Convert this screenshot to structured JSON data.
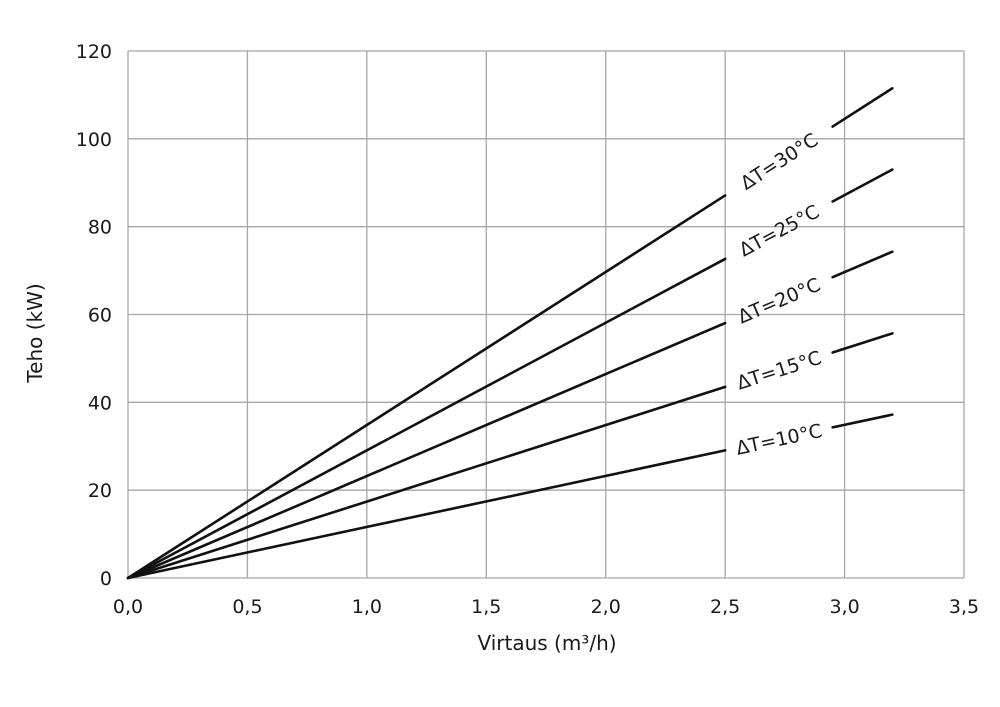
{
  "chart_data": {
    "type": "line",
    "title": "",
    "xlabel": "Virtaus (m³/h)",
    "ylabel": "Teho (kW)",
    "xlim": [
      0,
      3.5
    ],
    "ylim": [
      0,
      120
    ],
    "x_ticks": [
      0,
      0.5,
      1.0,
      1.5,
      2.0,
      2.5,
      3.0,
      3.5
    ],
    "x_tick_labels": [
      "0,0",
      "0,5",
      "1,0",
      "1,5",
      "2,0",
      "2,5",
      "3,0",
      "3,5"
    ],
    "y_ticks": [
      0,
      20,
      40,
      60,
      80,
      100,
      120
    ],
    "y_tick_labels": [
      "0",
      "20",
      "40",
      "60",
      "80",
      "100",
      "120"
    ],
    "grid": true,
    "legend": "inline labels on lines",
    "series_color": "#111111",
    "grid_color": "#a6a6a6",
    "series": [
      {
        "name": "ΔT=30°C",
        "x": [
          0,
          3.2
        ],
        "y": [
          0,
          111.5
        ]
      },
      {
        "name": "ΔT=25°C",
        "x": [
          0,
          3.2
        ],
        "y": [
          0,
          93.0
        ]
      },
      {
        "name": "ΔT=20°C",
        "x": [
          0,
          3.2
        ],
        "y": [
          0,
          74.3
        ]
      },
      {
        "name": "ΔT=15°C",
        "x": [
          0,
          3.2
        ],
        "y": [
          0,
          55.7
        ]
      },
      {
        "name": "ΔT=10°C",
        "x": [
          0,
          3.2
        ],
        "y": [
          0,
          37.2
        ]
      }
    ]
  }
}
